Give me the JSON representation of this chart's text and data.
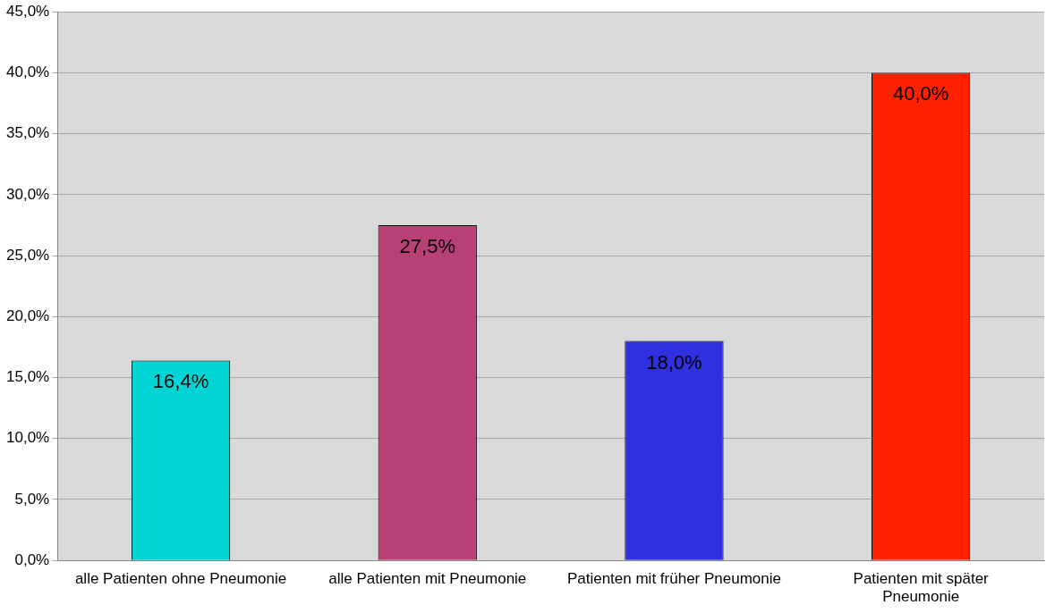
{
  "chart_data": {
    "type": "bar",
    "categories": [
      "alle Patienten ohne Pneumonie",
      "alle Patienten mit Pneumonie",
      "Patienten mit früher Pneumonie",
      "Patienten mit später Pneumonie"
    ],
    "values": [
      16.4,
      27.5,
      18.0,
      40.0
    ],
    "colors": [
      "#00d4d4",
      "#b94077",
      "#3030e0",
      "#ff2000"
    ],
    "value_labels": [
      "16,4%",
      "27,5%",
      "18,0%",
      "40,0%"
    ],
    "ylim": [
      0,
      45
    ],
    "yticks": [
      {
        "value": 0,
        "label": "0,0%"
      },
      {
        "value": 5,
        "label": "5,0%"
      },
      {
        "value": 10,
        "label": "10,0%"
      },
      {
        "value": 15,
        "label": "15,0%"
      },
      {
        "value": 20,
        "label": "20,0%"
      },
      {
        "value": 25,
        "label": "25,0%"
      },
      {
        "value": 30,
        "label": "30,0%"
      },
      {
        "value": 35,
        "label": "35,0%"
      },
      {
        "value": 40,
        "label": "40,0%"
      },
      {
        "value": 45,
        "label": "45,0%"
      }
    ],
    "grid": "y",
    "legend": false
  }
}
